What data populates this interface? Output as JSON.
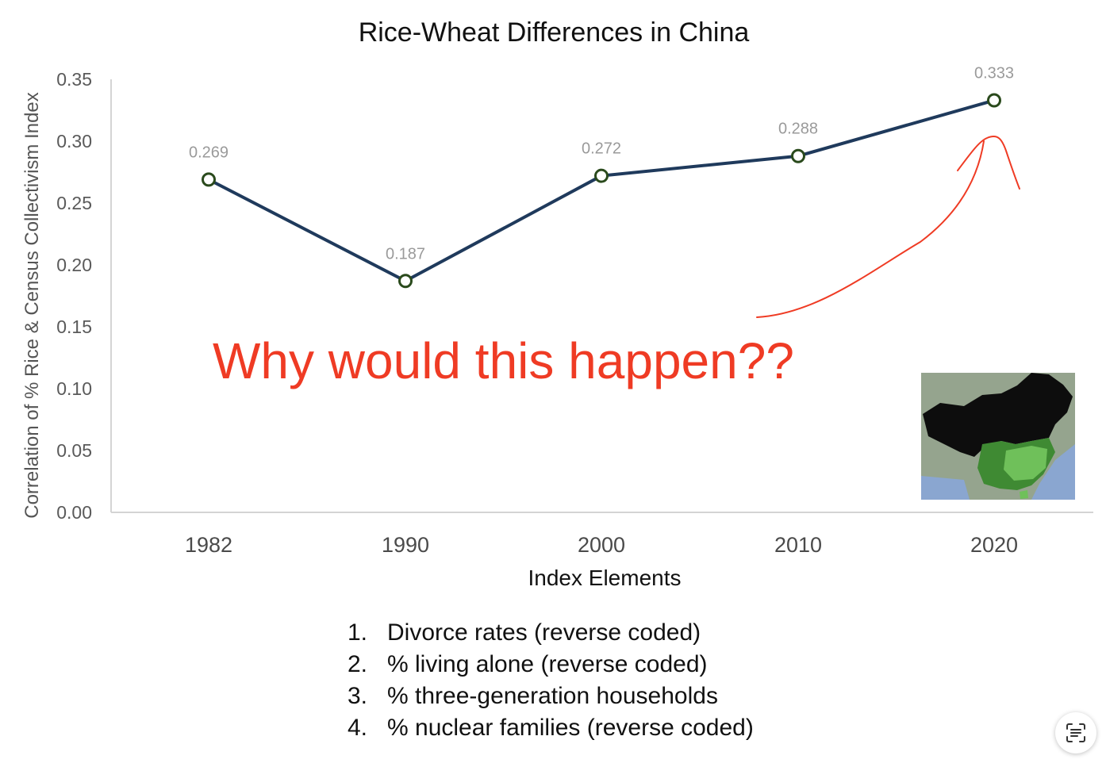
{
  "chart_data": {
    "type": "line",
    "title": "Rice-Wheat Differences in China",
    "xlabel": "Index Elements",
    "ylabel": "Correlation of % Rice & Census Collectivism Index",
    "categories": [
      "1982",
      "1990",
      "2000",
      "2010",
      "2020"
    ],
    "series": [
      {
        "values": [
          0.269,
          0.187,
          0.272,
          0.288,
          0.333
        ]
      }
    ],
    "data_labels": [
      "0.269",
      "0.187",
      "0.272",
      "0.288",
      "0.333"
    ],
    "ylim": [
      0,
      0.35
    ],
    "y_ticks": [
      "0.00",
      "0.05",
      "0.10",
      "0.15",
      "0.20",
      "0.25",
      "0.30",
      "0.35"
    ],
    "grid": false,
    "line_color": "#1f3a5c",
    "marker_color": "#2a4a1c"
  },
  "annotation": {
    "text": "Why would this happen??",
    "color": "#ef3b24",
    "arrow": "hand-drawn arrow pointing to 2020 value"
  },
  "map_inset": {
    "icon": "china-rice-wheat-map",
    "colors": {
      "ocean": "#8aa6d0",
      "land": "#95a48e",
      "wheat": "#0d0d0d",
      "rice": "#6fc05a"
    }
  },
  "index_elements": [
    {
      "num": "1.",
      "text": "Divorce rates (reverse coded)"
    },
    {
      "num": "2.",
      "text": "% living alone (reverse coded)"
    },
    {
      "num": "3.",
      "text": "% three-generation households"
    },
    {
      "num": "4.",
      "text": "% nuclear families (reverse coded)"
    }
  ],
  "scan_button": {
    "icon": "text-scan-icon"
  }
}
